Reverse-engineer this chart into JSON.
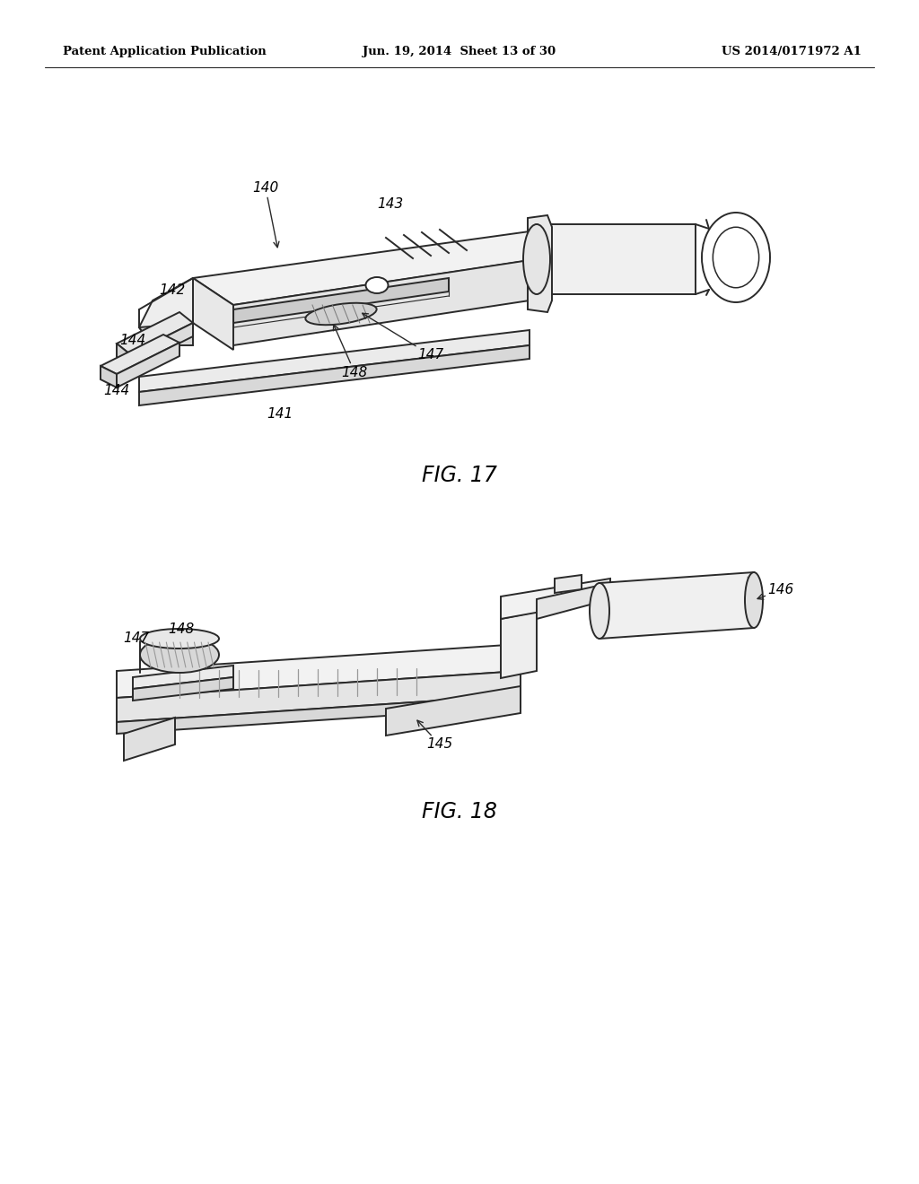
{
  "bg_color": "#ffffff",
  "line_color": "#2a2a2a",
  "text_color": "#000000",
  "header_left": "Patent Application Publication",
  "header_center": "Jun. 19, 2014  Sheet 13 of 30",
  "header_right": "US 2014/0171972 A1",
  "fig17_label": "FIG. 17",
  "fig18_label": "FIG. 18",
  "lw": 1.4,
  "lw_thin": 0.8
}
